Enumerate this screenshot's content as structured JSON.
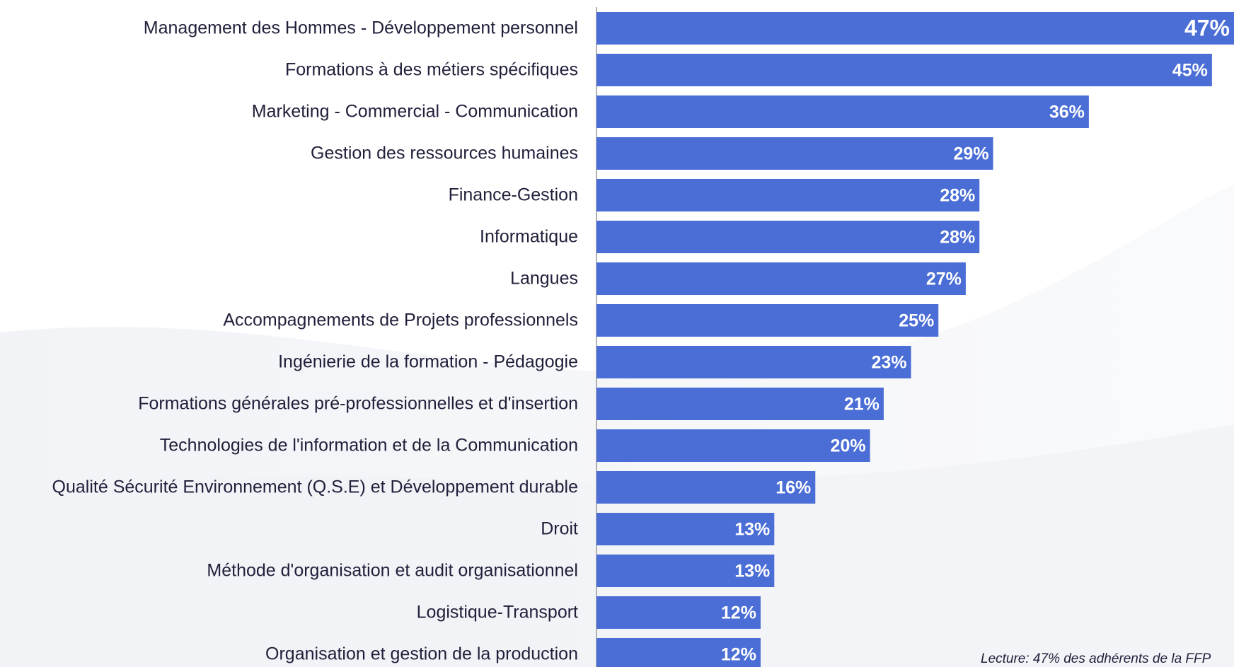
{
  "chart_data": {
    "type": "bar",
    "orientation": "horizontal",
    "categories": [
      "Management des Hommes - Développement personnel",
      "Formations à des métiers spécifiques",
      "Marketing - Commercial - Communication",
      "Gestion des ressources humaines",
      "Finance-Gestion",
      "Informatique",
      "Langues",
      "Accompagnements de Projets professionnels",
      "Ingénierie de la formation - Pédagogie",
      "Formations générales pré-professionnelles et d'insertion",
      "Technologies de l'information et de la Communication",
      "Qualité Sécurité Environnement (Q.S.E) et Développement durable",
      "Droit",
      "Méthode d'organisation et audit organisationnel",
      "Logistique-Transport",
      "Organisation et gestion de la production"
    ],
    "values": [
      47,
      45,
      36,
      29,
      28,
      28,
      27,
      25,
      23,
      21,
      20,
      16,
      13,
      13,
      12,
      12
    ],
    "value_labels": [
      "47%",
      "45%",
      "36%",
      "29%",
      "28%",
      "28%",
      "27%",
      "25%",
      "23%",
      "21%",
      "20%",
      "16%",
      "13%",
      "13%",
      "12%",
      "12%"
    ],
    "color": "#4a6dd6",
    "annotation": "Lecture: 47% des adhérents de la FFP"
  }
}
